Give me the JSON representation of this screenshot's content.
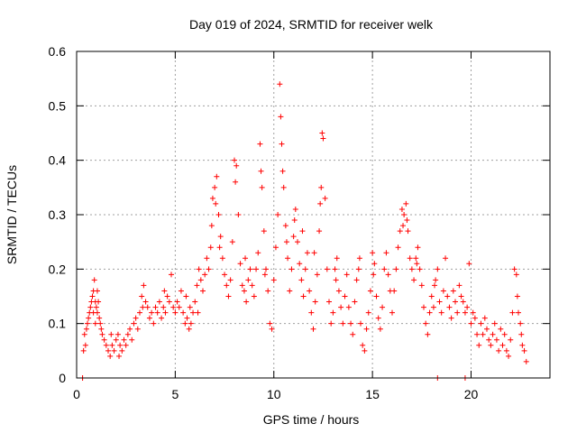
{
  "chart_data": {
    "type": "scatter",
    "title": "Day 019 of 2024, SRMTID for receiver welk",
    "xlabel": "GPS time / hours",
    "ylabel": "SRMTID / TECUs",
    "xlim": [
      0,
      24
    ],
    "ylim": [
      0,
      0.6
    ],
    "x_ticks": [
      0,
      5,
      10,
      15,
      20
    ],
    "x_tick_labels": [
      "0",
      "5",
      "10",
      "15",
      "20"
    ],
    "y_ticks": [
      0,
      0.1,
      0.2,
      0.3,
      0.4,
      0.5,
      0.6
    ],
    "y_tick_labels": [
      "0",
      "0.1",
      "0.2",
      "0.3",
      "0.4",
      "0.5",
      "0.6"
    ],
    "grid": true,
    "marker": "plus",
    "series": [
      {
        "name": "SRMTID",
        "color": "#ff0000",
        "points": [
          [
            0.3,
            0.0
          ],
          [
            0.35,
            0.05
          ],
          [
            0.4,
            0.08
          ],
          [
            0.45,
            0.06
          ],
          [
            0.5,
            0.09
          ],
          [
            0.55,
            0.1
          ],
          [
            0.6,
            0.11
          ],
          [
            0.65,
            0.12
          ],
          [
            0.7,
            0.13
          ],
          [
            0.75,
            0.14
          ],
          [
            0.8,
            0.15
          ],
          [
            0.85,
            0.16
          ],
          [
            0.9,
            0.18
          ],
          [
            0.95,
            0.14
          ],
          [
            1.0,
            0.13
          ],
          [
            1.05,
            0.12
          ],
          [
            1.1,
            0.14
          ],
          [
            1.15,
            0.11
          ],
          [
            1.2,
            0.1
          ],
          [
            1.25,
            0.09
          ],
          [
            1.3,
            0.08
          ],
          [
            1.4,
            0.07
          ],
          [
            1.5,
            0.06
          ],
          [
            1.6,
            0.05
          ],
          [
            1.7,
            0.04
          ],
          [
            1.8,
            0.06
          ],
          [
            1.9,
            0.05
          ],
          [
            2.0,
            0.07
          ],
          [
            2.1,
            0.08
          ],
          [
            2.2,
            0.06
          ],
          [
            2.3,
            0.05
          ],
          [
            2.4,
            0.07
          ],
          [
            2.5,
            0.06
          ],
          [
            2.6,
            0.08
          ],
          [
            2.7,
            0.09
          ],
          [
            2.8,
            0.07
          ],
          [
            2.9,
            0.1
          ],
          [
            3.0,
            0.11
          ],
          [
            3.1,
            0.09
          ],
          [
            3.2,
            0.12
          ],
          [
            3.3,
            0.15
          ],
          [
            3.4,
            0.17
          ],
          [
            3.5,
            0.14
          ],
          [
            3.6,
            0.13
          ],
          [
            3.7,
            0.11
          ],
          [
            3.8,
            0.12
          ],
          [
            3.9,
            0.1
          ],
          [
            4.0,
            0.13
          ],
          [
            4.1,
            0.12
          ],
          [
            4.2,
            0.14
          ],
          [
            4.3,
            0.11
          ],
          [
            4.4,
            0.13
          ],
          [
            4.5,
            0.12
          ],
          [
            4.6,
            0.15
          ],
          [
            4.7,
            0.14
          ],
          [
            4.8,
            0.19
          ],
          [
            4.9,
            0.13
          ],
          [
            5.0,
            0.12
          ],
          [
            5.1,
            0.14
          ],
          [
            5.2,
            0.13
          ],
          [
            5.3,
            0.16
          ],
          [
            5.4,
            0.12
          ],
          [
            5.5,
            0.1
          ],
          [
            5.6,
            0.11
          ],
          [
            5.7,
            0.09
          ],
          [
            5.8,
            0.1
          ],
          [
            5.9,
            0.12
          ],
          [
            6.0,
            0.14
          ],
          [
            6.1,
            0.17
          ],
          [
            6.2,
            0.2
          ],
          [
            6.3,
            0.18
          ],
          [
            6.4,
            0.16
          ],
          [
            6.5,
            0.19
          ],
          [
            6.6,
            0.22
          ],
          [
            6.7,
            0.2
          ],
          [
            6.8,
            0.24
          ],
          [
            6.9,
            0.33
          ],
          [
            7.0,
            0.35
          ],
          [
            7.1,
            0.37
          ],
          [
            7.2,
            0.3
          ],
          [
            7.3,
            0.26
          ],
          [
            7.4,
            0.22
          ],
          [
            7.5,
            0.19
          ],
          [
            7.6,
            0.17
          ],
          [
            7.7,
            0.15
          ],
          [
            7.8,
            0.18
          ],
          [
            7.9,
            0.25
          ],
          [
            8.0,
            0.4
          ],
          [
            8.1,
            0.39
          ],
          [
            8.2,
            0.3
          ],
          [
            8.3,
            0.21
          ],
          [
            8.4,
            0.17
          ],
          [
            8.5,
            0.16
          ],
          [
            8.6,
            0.14
          ],
          [
            8.7,
            0.18
          ],
          [
            8.8,
            0.2
          ],
          [
            8.9,
            0.17
          ],
          [
            9.0,
            0.15
          ],
          [
            9.1,
            0.2
          ],
          [
            9.2,
            0.23
          ],
          [
            9.3,
            0.43
          ],
          [
            9.4,
            0.35
          ],
          [
            9.5,
            0.27
          ],
          [
            9.6,
            0.2
          ],
          [
            9.7,
            0.16
          ],
          [
            9.8,
            0.1
          ],
          [
            9.9,
            0.09
          ],
          [
            10.0,
            0.18
          ],
          [
            10.1,
            0.24
          ],
          [
            10.2,
            0.3
          ],
          [
            10.3,
            0.54
          ],
          [
            10.35,
            0.48
          ],
          [
            10.4,
            0.43
          ],
          [
            10.5,
            0.35
          ],
          [
            10.6,
            0.28
          ],
          [
            10.7,
            0.22
          ],
          [
            10.8,
            0.16
          ],
          [
            10.9,
            0.2
          ],
          [
            11.0,
            0.26
          ],
          [
            11.1,
            0.31
          ],
          [
            11.2,
            0.25
          ],
          [
            11.3,
            0.21
          ],
          [
            11.4,
            0.18
          ],
          [
            11.5,
            0.15
          ],
          [
            11.6,
            0.2
          ],
          [
            11.7,
            0.23
          ],
          [
            11.8,
            0.16
          ],
          [
            11.9,
            0.12
          ],
          [
            12.0,
            0.09
          ],
          [
            12.1,
            0.14
          ],
          [
            12.2,
            0.19
          ],
          [
            12.3,
            0.27
          ],
          [
            12.4,
            0.35
          ],
          [
            12.45,
            0.45
          ],
          [
            12.5,
            0.44
          ],
          [
            12.6,
            0.33
          ],
          [
            12.7,
            0.2
          ],
          [
            12.8,
            0.14
          ],
          [
            12.9,
            0.1
          ],
          [
            13.0,
            0.12
          ],
          [
            13.1,
            0.2
          ],
          [
            13.2,
            0.22
          ],
          [
            13.3,
            0.16
          ],
          [
            13.4,
            0.13
          ],
          [
            13.5,
            0.1
          ],
          [
            13.6,
            0.15
          ],
          [
            13.7,
            0.19
          ],
          [
            13.8,
            0.13
          ],
          [
            13.9,
            0.1
          ],
          [
            14.0,
            0.08
          ],
          [
            14.1,
            0.14
          ],
          [
            14.2,
            0.18
          ],
          [
            14.3,
            0.2
          ],
          [
            14.4,
            0.1
          ],
          [
            14.5,
            0.06
          ],
          [
            14.6,
            0.05
          ],
          [
            14.7,
            0.09
          ],
          [
            14.8,
            0.12
          ],
          [
            14.9,
            0.16
          ],
          [
            15.0,
            0.23
          ],
          [
            15.1,
            0.21
          ],
          [
            15.2,
            0.15
          ],
          [
            15.3,
            0.11
          ],
          [
            15.4,
            0.09
          ],
          [
            15.5,
            0.13
          ],
          [
            15.6,
            0.2
          ],
          [
            15.7,
            0.23
          ],
          [
            15.8,
            0.19
          ],
          [
            15.9,
            0.16
          ],
          [
            16.0,
            0.12
          ],
          [
            16.1,
            0.16
          ],
          [
            16.2,
            0.2
          ],
          [
            16.3,
            0.24
          ],
          [
            16.4,
            0.27
          ],
          [
            16.5,
            0.31
          ],
          [
            16.6,
            0.3
          ],
          [
            16.7,
            0.32
          ],
          [
            16.8,
            0.27
          ],
          [
            16.9,
            0.22
          ],
          [
            17.0,
            0.2
          ],
          [
            17.1,
            0.18
          ],
          [
            17.2,
            0.22
          ],
          [
            17.3,
            0.24
          ],
          [
            17.4,
            0.2
          ],
          [
            17.5,
            0.17
          ],
          [
            17.6,
            0.13
          ],
          [
            17.7,
            0.1
          ],
          [
            17.8,
            0.08
          ],
          [
            17.9,
            0.12
          ],
          [
            18.0,
            0.15
          ],
          [
            18.1,
            0.13
          ],
          [
            18.2,
            0.18
          ],
          [
            18.3,
            0.2
          ],
          [
            18.4,
            0.14
          ],
          [
            18.5,
            0.12
          ],
          [
            18.6,
            0.16
          ],
          [
            18.7,
            0.22
          ],
          [
            18.8,
            0.15
          ],
          [
            18.9,
            0.13
          ],
          [
            19.0,
            0.11
          ],
          [
            19.1,
            0.16
          ],
          [
            19.2,
            0.14
          ],
          [
            19.3,
            0.12
          ],
          [
            19.4,
            0.17
          ],
          [
            19.5,
            0.15
          ],
          [
            19.6,
            0.14
          ],
          [
            19.7,
            0.12
          ],
          [
            19.8,
            0.13
          ],
          [
            19.9,
            0.21
          ],
          [
            20.0,
            0.1
          ],
          [
            20.1,
            0.12
          ],
          [
            20.2,
            0.11
          ],
          [
            20.3,
            0.08
          ],
          [
            20.4,
            0.06
          ],
          [
            20.5,
            0.1
          ],
          [
            20.6,
            0.08
          ],
          [
            20.7,
            0.11
          ],
          [
            20.8,
            0.09
          ],
          [
            20.9,
            0.07
          ],
          [
            21.0,
            0.06
          ],
          [
            21.1,
            0.08
          ],
          [
            21.2,
            0.1
          ],
          [
            21.3,
            0.07
          ],
          [
            21.4,
            0.05
          ],
          [
            21.5,
            0.09
          ],
          [
            21.6,
            0.06
          ],
          [
            21.7,
            0.08
          ],
          [
            21.8,
            0.05
          ],
          [
            21.9,
            0.04
          ],
          [
            22.0,
            0.07
          ],
          [
            22.1,
            0.12
          ],
          [
            22.2,
            0.2
          ],
          [
            22.3,
            0.19
          ],
          [
            22.35,
            0.15
          ],
          [
            22.4,
            0.12
          ],
          [
            22.5,
            0.1
          ],
          [
            22.55,
            0.08
          ],
          [
            22.6,
            0.06
          ],
          [
            22.7,
            0.05
          ],
          [
            22.8,
            0.03
          ],
          [
            6.85,
            0.28
          ],
          [
            7.05,
            0.32
          ],
          [
            7.25,
            0.24
          ],
          [
            8.05,
            0.36
          ],
          [
            9.35,
            0.38
          ],
          [
            10.45,
            0.38
          ],
          [
            11.05,
            0.29
          ],
          [
            12.35,
            0.32
          ],
          [
            13.15,
            0.18
          ],
          [
            16.55,
            0.28
          ],
          [
            16.75,
            0.29
          ],
          [
            17.25,
            0.21
          ],
          [
            18.15,
            0.17
          ],
          [
            8.55,
            0.22
          ],
          [
            9.55,
            0.19
          ],
          [
            10.65,
            0.25
          ],
          [
            11.45,
            0.27
          ],
          [
            12.05,
            0.23
          ],
          [
            14.35,
            0.22
          ],
          [
            15.05,
            0.19
          ],
          [
            5.55,
            0.15
          ],
          [
            5.75,
            0.13
          ],
          [
            6.15,
            0.12
          ],
          [
            4.45,
            0.16
          ],
          [
            3.35,
            0.13
          ],
          [
            2.15,
            0.04
          ],
          [
            1.75,
            0.08
          ],
          [
            1.05,
            0.16
          ],
          [
            0.85,
            0.12
          ],
          [
            0.95,
            0.1
          ],
          [
            19.7,
            0.0
          ],
          [
            18.3,
            0.0
          ],
          [
            0.3,
            0.0
          ]
        ]
      }
    ]
  }
}
